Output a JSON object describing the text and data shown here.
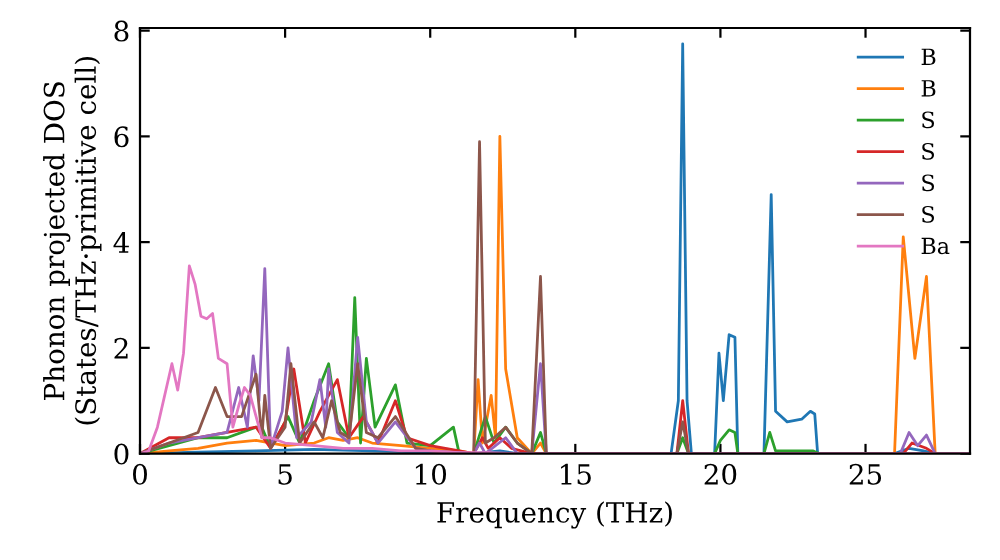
{
  "chart_data": {
    "type": "line",
    "xlabel": "Frequency (THz)",
    "ylabel": "Phonon projected DOS\n(States/THz·primitive cell)",
    "xlim": [
      0,
      28.6
    ],
    "ylim": [
      0,
      8.05
    ],
    "xticks": [
      0,
      5,
      10,
      15,
      20,
      25
    ],
    "yticks": [
      0,
      2,
      4,
      6,
      8
    ],
    "grid": false,
    "legend": "top right",
    "marker": "none",
    "line_style": "solid",
    "series": [
      {
        "name": "B",
        "color": "#1f77b4",
        "x": [
          0,
          2,
          4,
          6,
          8,
          10,
          11.5,
          12.4,
          13,
          18.3,
          18.55,
          18.7,
          18.85,
          19.0,
          19.8,
          19.95,
          20.1,
          20.3,
          20.5,
          20.6,
          21.5,
          21.75,
          21.9,
          22.3,
          22.8,
          23.1,
          23.25,
          23.35,
          26.0,
          26.5,
          27.0,
          27.4,
          28.6
        ],
        "values": [
          0,
          0.03,
          0.05,
          0.08,
          0.05,
          0.03,
          0,
          0.05,
          0,
          0,
          1.0,
          7.75,
          1.0,
          0,
          0,
          1.9,
          1.0,
          2.25,
          2.2,
          0,
          0,
          4.9,
          0.8,
          0.6,
          0.65,
          0.8,
          0.75,
          0,
          0,
          0.1,
          0.05,
          0,
          0
        ]
      },
      {
        "name": "B",
        "color": "#ff7f0e",
        "x": [
          0,
          1,
          2,
          3,
          4,
          5,
          6,
          6.5,
          7,
          7.5,
          8,
          9,
          10,
          11,
          11.5,
          11.65,
          11.8,
          12.1,
          12.25,
          12.4,
          12.6,
          13.0,
          13.5,
          13.8,
          14,
          18.5,
          26.0,
          26.3,
          26.7,
          27.1,
          27.4,
          28.6
        ],
        "values": [
          0,
          0.05,
          0.1,
          0.2,
          0.25,
          0.15,
          0.2,
          0.3,
          0.25,
          0.3,
          0.2,
          0.15,
          0.1,
          0.05,
          0,
          1.4,
          0.2,
          1.1,
          0.3,
          6.0,
          1.6,
          0.3,
          0,
          0.2,
          0,
          0,
          0,
          4.1,
          1.8,
          3.35,
          0,
          0
        ]
      },
      {
        "name": "S",
        "color": "#2ca02c",
        "x": [
          0,
          1,
          2,
          3,
          4,
          4.2,
          4.5,
          5.1,
          5.5,
          6.0,
          6.5,
          6.8,
          7.2,
          7.4,
          7.6,
          7.8,
          8.1,
          8.8,
          9.2,
          10,
          10.8,
          11.0,
          11.5,
          11.9,
          12.2,
          12.6,
          13.0,
          13.5,
          13.8,
          14,
          18.5,
          18.7,
          18.9,
          19.8,
          20.0,
          20.3,
          20.5,
          20.6,
          21.5,
          21.7,
          21.9,
          23.2,
          23.4,
          28.6
        ],
        "values": [
          0,
          0.15,
          0.3,
          0.3,
          0.5,
          0.5,
          0.1,
          0.7,
          0.2,
          1.0,
          1.7,
          0.6,
          0.3,
          2.95,
          0.2,
          1.8,
          0.5,
          1.3,
          0.2,
          0.15,
          0.5,
          0,
          0,
          0.7,
          0.2,
          0.5,
          0.2,
          0,
          0.4,
          0,
          0,
          0.3,
          0,
          0,
          0.25,
          0.45,
          0.4,
          0,
          0,
          0.4,
          0.05,
          0.05,
          0,
          0
        ]
      },
      {
        "name": "S",
        "color": "#d62728",
        "x": [
          0,
          1,
          2,
          3,
          4,
          4.5,
          5.0,
          5.3,
          5.7,
          6.2,
          6.8,
          7.2,
          7.7,
          8.2,
          8.8,
          9.2,
          10,
          11,
          11.5,
          11.8,
          12.0,
          12.4,
          12.8,
          13.5,
          14,
          18.5,
          18.7,
          18.9,
          26.3,
          26.6,
          27.1,
          27.4,
          28.6
        ],
        "values": [
          0,
          0.3,
          0.3,
          0.4,
          0.5,
          0.1,
          0.6,
          1.6,
          0.2,
          0.8,
          1.4,
          0.3,
          0.7,
          0.2,
          1.0,
          0.3,
          0.15,
          0.05,
          0,
          0.3,
          0.1,
          0.3,
          0.1,
          0,
          0,
          0,
          1.0,
          0,
          0,
          0.2,
          0.1,
          0,
          0
        ]
      },
      {
        "name": "S",
        "color": "#9467bd",
        "x": [
          0,
          1,
          2,
          3,
          3.4,
          3.7,
          3.9,
          4.1,
          4.3,
          4.5,
          4.9,
          5.1,
          5.4,
          5.9,
          6.2,
          6.4,
          6.5,
          6.8,
          7.2,
          7.5,
          7.8,
          8.2,
          8.8,
          9.5,
          10,
          11.5,
          11.7,
          11.9,
          12.6,
          13.0,
          13.5,
          13.8,
          14.0,
          18.5,
          26.2,
          26.5,
          26.8,
          27.1,
          27.4,
          28.6
        ],
        "values": [
          0,
          0.2,
          0.3,
          0.4,
          1.25,
          0.5,
          1.85,
          1.0,
          3.5,
          0.1,
          0.8,
          2.0,
          0.3,
          0.6,
          1.4,
          0.5,
          1.6,
          0.4,
          0.2,
          2.2,
          0.6,
          0.2,
          0.6,
          0.1,
          0.05,
          0,
          0.2,
          0,
          0.3,
          0,
          0,
          1.7,
          0,
          0,
          0,
          0.4,
          0.15,
          0.35,
          0,
          0
        ]
      },
      {
        "name": "S",
        "color": "#8c564b",
        "x": [
          0,
          1,
          2,
          2.6,
          3.0,
          3.5,
          4.0,
          4.2,
          4.3,
          4.5,
          5.0,
          5.2,
          5.5,
          6.0,
          6.3,
          6.6,
          6.9,
          7.2,
          7.5,
          7.8,
          8.2,
          8.8,
          9.5,
          10,
          11.0,
          11.5,
          11.7,
          11.9,
          12.2,
          12.6,
          13.0,
          13.5,
          13.8,
          14.0,
          18.5,
          18.7,
          18.9,
          28.6
        ],
        "values": [
          0,
          0.2,
          0.4,
          1.25,
          0.7,
          0.7,
          1.5,
          0.3,
          1.1,
          0.1,
          0.5,
          1.7,
          0.2,
          0.6,
          0.3,
          1.0,
          0.4,
          0.3,
          1.7,
          0.4,
          0.3,
          0.7,
          0.1,
          0.05,
          0,
          0,
          5.9,
          0.2,
          0.3,
          0.5,
          0.2,
          0,
          3.35,
          0,
          0,
          0.6,
          0,
          0
        ]
      },
      {
        "name": "Ba",
        "color": "#e377c2",
        "x": [
          0,
          0.3,
          0.6,
          1.1,
          1.3,
          1.5,
          1.7,
          1.9,
          2.1,
          2.3,
          2.5,
          2.7,
          3.0,
          3.2,
          3.4,
          3.6,
          3.8,
          4.2,
          4.5,
          5.0,
          6.0,
          7.0,
          8.0,
          9.0,
          10,
          11,
          12,
          13,
          14,
          28.6
        ],
        "values": [
          0,
          0.05,
          0.5,
          1.7,
          1.2,
          1.9,
          3.55,
          3.2,
          2.6,
          2.55,
          2.65,
          1.8,
          1.7,
          0.5,
          0.9,
          1.25,
          1.1,
          0.3,
          0.3,
          0.2,
          0.15,
          0.1,
          0.1,
          0.05,
          0.05,
          0.02,
          0.02,
          0,
          0,
          0
        ]
      }
    ]
  }
}
